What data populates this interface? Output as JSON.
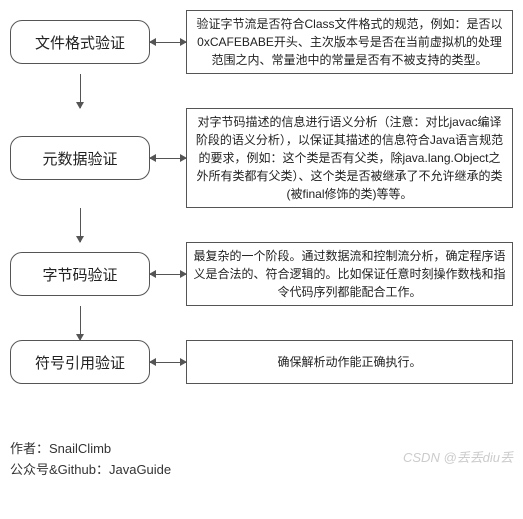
{
  "stages": [
    {
      "title": "文件格式验证",
      "desc": "验证字节流是否符合Class文件格式的规范，例如：是否以0xCAFEBABE开头、主次版本号是否在当前虚拟机的处理范围之内、常量池中的常量是否有不被支持的类型。"
    },
    {
      "title": "元数据验证",
      "desc": "对字节码描述的信息进行语义分析（注意：对比javac编译阶段的语义分析），以保证其描述的信息符合Java语言规范的要求，例如：这个类是否有父类，除java.lang.Object之外所有类都有父类）、这个类是否被继承了不允许继承的类(被final修饰的类)等等。"
    },
    {
      "title": "字节码验证",
      "desc": "最复杂的一个阶段。通过数据流和控制流分析，确定程序语义是合法的、符合逻辑的。比如保证任意时刻操作数栈和指令代码序列都能配合工作。"
    },
    {
      "title": "符号引用验证",
      "desc": "确保解析动作能正确执行。"
    }
  ],
  "footer": {
    "author_label": "作者：",
    "author": "SnailClimb",
    "source_label": "公众号&Github：",
    "source": "JavaGuide"
  },
  "watermark": "CSDN @丢丢diu丢",
  "watermark2": "",
  "style": {
    "stage_border_radius": 12,
    "stage_width": 140,
    "stage_height": 44,
    "font_title": 15,
    "font_desc": 12,
    "border_color": "#555555",
    "bg_color": "#ffffff"
  }
}
